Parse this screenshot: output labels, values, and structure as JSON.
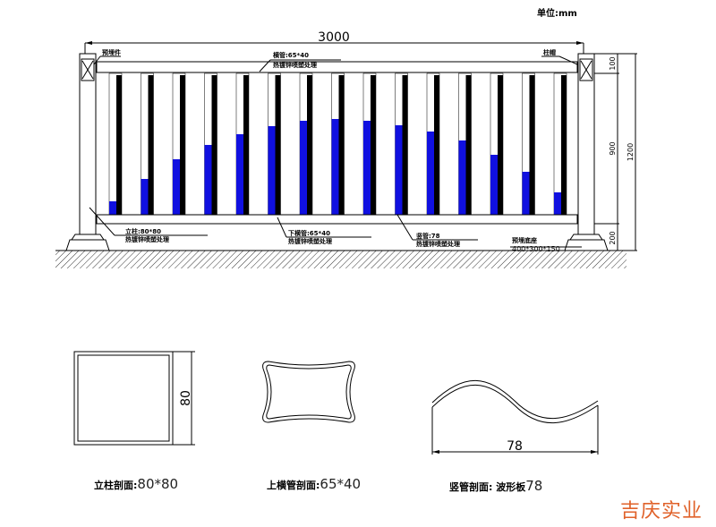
{
  "unit_label": "单位:mm",
  "dimensions": {
    "total_length": "3000",
    "top_segment": "100",
    "middle_segment": "900",
    "total_height": "1200",
    "bottom_segment": "200"
  },
  "callouts": {
    "top_left": "预埋件",
    "top_right": "柱帽",
    "top_rail": "横管:65*40",
    "top_rail_note": "热镀锌喷塑处理",
    "post": "立柱:80*80",
    "post_note": "热镀锌喷塑处理",
    "bottom_rail": "下横管:65*40",
    "bottom_rail_note": "热镀锌喷塑处理",
    "picket": "竖管:78",
    "picket_note": "热镀锌喷塑处理",
    "base": "预埋底座",
    "base_size": "400*300*150"
  },
  "sections": [
    {
      "label": "立柱剖面:",
      "value": "80*80",
      "dim": "80"
    },
    {
      "label": "上横管剖面:",
      "value": "65*40"
    },
    {
      "label": "竖管剖面: 波形板",
      "value": "78",
      "dim": "78"
    }
  ],
  "watermark": "吉庆实业",
  "colors": {
    "picket_blue": "#1010e0",
    "picket_black": "#000000",
    "watermark": "#e0622a"
  }
}
